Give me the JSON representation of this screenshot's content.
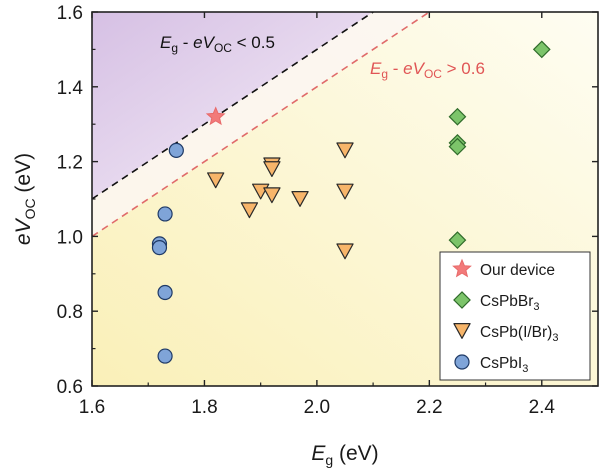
{
  "chart_data": {
    "type": "scatter",
    "title": "",
    "xlabel": {
      "main": "E",
      "sub": "g",
      "unit": " (eV)"
    },
    "ylabel": {
      "main": "eV",
      "sub": "OC",
      "unit": " (eV)"
    },
    "xlim": [
      1.6,
      2.5
    ],
    "ylim": [
      0.6,
      1.6
    ],
    "xticks": [
      1.6,
      1.8,
      2.0,
      2.2,
      2.4
    ],
    "yticks": [
      0.6,
      0.8,
      1.0,
      1.2,
      1.4,
      1.6
    ],
    "xtick_labels": [
      "1.6",
      "1.8",
      "2.0",
      "2.2",
      "2.4"
    ],
    "ytick_labels": [
      "0.6",
      "0.8",
      "1.0",
      "1.2",
      "1.4",
      "1.6"
    ],
    "background_regions": [
      {
        "name": "loss-below-0.5",
        "upper_region_color": "#d8c4e4",
        "description_color": "#efe6f4"
      },
      {
        "name": "loss-above-0.6",
        "color": "#fbf4c2"
      }
    ],
    "reference_lines": [
      {
        "name": "Eg - eVoc = 0.5",
        "offset": 0.5,
        "color": "#111111",
        "style": "dashed"
      },
      {
        "name": "Eg - eVoc = 0.6",
        "offset": 0.6,
        "color": "#e06a6a",
        "style": "dashed"
      }
    ],
    "annotations": [
      {
        "name": "black-line-label",
        "parts": [
          "E",
          "g",
          " - ",
          "eV",
          "OC",
          " < 0.5"
        ],
        "color": "#111111"
      },
      {
        "name": "red-line-label",
        "parts": [
          "E",
          "g",
          " - ",
          "eV",
          "OC",
          " > 0.6"
        ],
        "color": "#e05555"
      }
    ],
    "series": [
      {
        "name": "Our device",
        "legend_label": "Our device",
        "marker": "star",
        "color": "#f27a7a",
        "edge": "#e86a6a",
        "points": [
          [
            1.82,
            1.32
          ]
        ]
      },
      {
        "name": "CsPbBr3",
        "legend_label": [
          "CsPbBr",
          "3",
          ""
        ],
        "marker": "diamond",
        "color": "#7cc46a",
        "edge": "#2f6b2a",
        "points": [
          [
            2.4,
            1.5
          ],
          [
            2.25,
            1.32
          ],
          [
            2.25,
            1.25
          ],
          [
            2.25,
            1.24
          ],
          [
            2.25,
            0.99
          ]
        ]
      },
      {
        "name": "CsPb(I/Br)3",
        "legend_label": [
          "CsPb(I/Br)",
          "3",
          ""
        ],
        "marker": "triangle-down",
        "color": "#f7b56a",
        "edge": "#2a2a2a",
        "points": [
          [
            1.82,
            1.15
          ],
          [
            1.88,
            1.07
          ],
          [
            1.9,
            1.12
          ],
          [
            1.92,
            1.19
          ],
          [
            1.92,
            1.18
          ],
          [
            1.92,
            1.11
          ],
          [
            1.97,
            1.1
          ],
          [
            2.05,
            1.23
          ],
          [
            2.05,
            1.12
          ],
          [
            2.05,
            0.96
          ]
        ]
      },
      {
        "name": "CsPbI3",
        "legend_label": [
          "CsPbI",
          "3",
          ""
        ],
        "marker": "circle",
        "color": "#7fa4d8",
        "edge": "#1f3a66",
        "points": [
          [
            1.75,
            1.23
          ],
          [
            1.73,
            1.06
          ],
          [
            1.72,
            0.98
          ],
          [
            1.72,
            0.97
          ],
          [
            1.73,
            0.85
          ],
          [
            1.73,
            0.68
          ]
        ]
      }
    ],
    "legend_position": "bottom-right"
  }
}
